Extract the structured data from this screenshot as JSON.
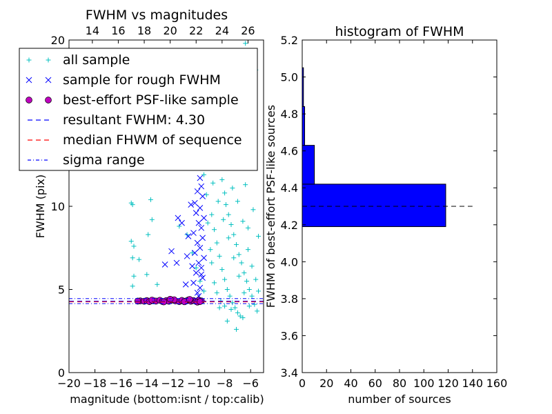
{
  "chart_data": [
    {
      "type": "scatter",
      "title": "FWHM vs magnitudes",
      "xlabel": "magnitude (bottom:isnt / top:calib)",
      "ylabel": "FWHM (pix)",
      "xlim": [
        -20,
        -5
      ],
      "ylim": [
        0,
        20
      ],
      "xticks": [
        "−20",
        "−18",
        "−16",
        "−14",
        "−12",
        "−10",
        "−8",
        "−6"
      ],
      "xtick_values": [
        -20,
        -18,
        -16,
        -14,
        -12,
        -10,
        -8,
        -6
      ],
      "yticks": [
        "0",
        "5",
        "10",
        "15",
        "20"
      ],
      "ytick_values": [
        0,
        5,
        10,
        15,
        20
      ],
      "top_axis": {
        "ticks": [
          "14",
          "16",
          "18",
          "20",
          "22",
          "24",
          "26"
        ],
        "bottom_equivalent": [
          -18.2,
          -16.2,
          -14.2,
          -12.2,
          -10.2,
          -8.2,
          -6.2
        ]
      },
      "legend": {
        "placement": "top-left",
        "entries": [
          {
            "label": "all sample",
            "marker": "plus",
            "color": "#00bfbf"
          },
          {
            "label": "sample for rough FWHM",
            "marker": "x",
            "color": "#0000ff"
          },
          {
            "label": "best-effort PSF-like sample",
            "marker": "circle",
            "color": "#bf00bf"
          },
          {
            "label": "resultant FWHM: 4.30",
            "marker": "dashed",
            "color": "#0000ff"
          },
          {
            "label": "median FHWM of sequence",
            "marker": "dashed",
            "color": "#ff0000"
          },
          {
            "label": "sigma range",
            "marker": "dashdot",
            "color": "#0000ff"
          }
        ]
      },
      "series": [
        {
          "name": "all sample",
          "color": "#00bfbf",
          "points": [
            [
              -15.2,
              10.2
            ],
            [
              -15.1,
              10.1
            ],
            [
              -15.2,
              7.9
            ],
            [
              -15.0,
              7.6
            ],
            [
              -15.1,
              6.9
            ],
            [
              -15.0,
              5.8
            ],
            [
              -15.1,
              5.2
            ],
            [
              -13.7,
              10.4
            ],
            [
              -13.6,
              9.2
            ],
            [
              -13.9,
              8.3
            ],
            [
              -14.6,
              6.8
            ],
            [
              -14.0,
              5.9
            ],
            [
              -13.2,
              5.3
            ],
            [
              -11.5,
              8.8
            ],
            [
              -10.9,
              8.3
            ],
            [
              -10.5,
              7.2
            ],
            [
              -10.2,
              6.3
            ],
            [
              -9.9,
              5.5
            ],
            [
              -9.6,
              4.9
            ],
            [
              -9.3,
              17.5
            ],
            [
              -9.1,
              16.8
            ],
            [
              -8.9,
              15.3
            ],
            [
              -8.7,
              14.2
            ],
            [
              -8.6,
              13.1
            ],
            [
              -8.4,
              12.3
            ],
            [
              -8.2,
              11.6
            ],
            [
              -8.0,
              10.8
            ],
            [
              -7.9,
              10.1
            ],
            [
              -7.7,
              9.5
            ],
            [
              -7.5,
              8.9
            ],
            [
              -7.3,
              8.3
            ],
            [
              -7.1,
              7.7
            ],
            [
              -6.9,
              7.1
            ],
            [
              -6.7,
              6.6
            ],
            [
              -6.5,
              6.0
            ],
            [
              -6.3,
              5.5
            ],
            [
              -6.1,
              5.0
            ],
            [
              -5.9,
              4.6
            ],
            [
              -5.7,
              4.1
            ],
            [
              -5.5,
              3.7
            ],
            [
              -9.0,
              9.5
            ],
            [
              -8.8,
              8.6
            ],
            [
              -8.6,
              7.8
            ],
            [
              -8.4,
              7.0
            ],
            [
              -8.2,
              6.2
            ],
            [
              -8.0,
              5.6
            ],
            [
              -7.8,
              5.0
            ],
            [
              -7.6,
              4.6
            ],
            [
              -7.4,
              4.2
            ],
            [
              -7.2,
              3.9
            ],
            [
              -7.0,
              3.6
            ],
            [
              -6.8,
              3.4
            ],
            [
              -6.6,
              3.3
            ],
            [
              -9.2,
              12.8
            ],
            [
              -8.9,
              11.4
            ],
            [
              -8.5,
              10.3
            ],
            [
              -8.1,
              9.2
            ],
            [
              -7.7,
              8.1
            ],
            [
              -7.3,
              6.9
            ],
            [
              -6.9,
              5.8
            ],
            [
              -6.5,
              4.8
            ],
            [
              -6.1,
              4.0
            ],
            [
              -8.3,
              4.3
            ],
            [
              -8.0,
              4.0
            ],
            [
              -7.5,
              3.8
            ],
            [
              -7.8,
              3.1
            ],
            [
              -7.1,
              2.6
            ],
            [
              -6.4,
              19.8
            ],
            [
              -6.0,
              18.9
            ],
            [
              -5.6,
              18.2
            ],
            [
              -7.0,
              17.7
            ],
            [
              -6.6,
              16.6
            ],
            [
              -8.3,
              16.0
            ],
            [
              -9.4,
              14.6
            ],
            [
              -9.2,
              13.8
            ],
            [
              -7.6,
              12.4
            ],
            [
              -6.4,
              11.3
            ],
            [
              -5.8,
              9.8
            ],
            [
              -5.4,
              8.2
            ],
            [
              -9.6,
              11.9
            ],
            [
              -9.4,
              10.7
            ],
            [
              -9.3,
              9.0
            ],
            [
              -9.1,
              7.4
            ],
            [
              -9.0,
              6.6
            ],
            [
              -8.8,
              5.4
            ],
            [
              -8.6,
              4.8
            ],
            [
              -8.4,
              3.9
            ],
            [
              -6.2,
              7.4
            ],
            [
              -5.9,
              6.4
            ],
            [
              -5.6,
              5.6
            ],
            [
              -5.4,
              4.9
            ],
            [
              -7.4,
              11.1
            ],
            [
              -7.0,
              10.3
            ],
            [
              -6.6,
              9.1
            ],
            [
              -6.2,
              8.7
            ],
            [
              -7.9,
              13.6
            ],
            [
              -8.6,
              15.6
            ]
          ]
        },
        {
          "name": "sample for rough FWHM",
          "color": "#0000ff",
          "points": [
            [
              -9.9,
              11.7
            ],
            [
              -9.8,
              11.2
            ],
            [
              -10.1,
              10.9
            ],
            [
              -9.7,
              10.6
            ],
            [
              -10.3,
              10.2
            ],
            [
              -9.9,
              9.9
            ],
            [
              -10.2,
              9.6
            ],
            [
              -9.6,
              9.3
            ],
            [
              -10.0,
              9.0
            ],
            [
              -9.8,
              8.7
            ],
            [
              -10.4,
              8.4
            ],
            [
              -9.7,
              8.1
            ],
            [
              -10.1,
              7.8
            ],
            [
              -9.9,
              7.5
            ],
            [
              -10.3,
              7.2
            ],
            [
              -9.6,
              6.9
            ],
            [
              -10.0,
              6.6
            ],
            [
              -9.8,
              6.3
            ],
            [
              -10.2,
              6.0
            ],
            [
              -9.7,
              5.7
            ],
            [
              -10.4,
              5.4
            ],
            [
              -9.9,
              5.1
            ],
            [
              -10.1,
              4.8
            ],
            [
              -10.6,
              10.1
            ],
            [
              -10.8,
              8.2
            ],
            [
              -10.5,
              6.4
            ],
            [
              -11.6,
              9.3
            ],
            [
              -11.3,
              9.0
            ],
            [
              -12.1,
              7.3
            ],
            [
              -11.7,
              6.6
            ],
            [
              -10.9,
              7.0
            ],
            [
              -12.6,
              6.5
            ],
            [
              -11.0,
              5.3
            ],
            [
              -9.7,
              12.5
            ],
            [
              -9.8,
              5.9
            ],
            [
              -10.0,
              4.6
            ]
          ]
        },
        {
          "name": "best-effort PSF-like sample",
          "color": "#bf00bf",
          "points": [
            [
              -14.5,
              4.31
            ],
            [
              -14.2,
              4.29
            ],
            [
              -14.0,
              4.33
            ],
            [
              -13.8,
              4.27
            ],
            [
              -13.5,
              4.32
            ],
            [
              -13.3,
              4.3
            ],
            [
              -13.0,
              4.35
            ],
            [
              -12.8,
              4.28
            ],
            [
              -12.5,
              4.33
            ],
            [
              -12.3,
              4.29
            ],
            [
              -12.0,
              4.36
            ],
            [
              -11.8,
              4.31
            ],
            [
              -11.5,
              4.27
            ],
            [
              -11.3,
              4.34
            ],
            [
              -11.0,
              4.3
            ],
            [
              -10.8,
              4.37
            ],
            [
              -10.6,
              4.29
            ],
            [
              -10.4,
              4.33
            ],
            [
              -10.2,
              4.28
            ],
            [
              -10.0,
              4.35
            ],
            [
              -9.8,
              4.31
            ],
            [
              -14.7,
              4.3
            ],
            [
              -13.6,
              4.36
            ],
            [
              -12.7,
              4.25
            ],
            [
              -11.9,
              4.38
            ],
            [
              -11.1,
              4.26
            ],
            [
              -10.7,
              4.4
            ],
            [
              -10.1,
              4.24
            ],
            [
              -9.9,
              4.27
            ],
            [
              -12.2,
              4.41
            ]
          ]
        }
      ],
      "lines": [
        {
          "name": "resultant FWHM: 4.30",
          "y": 4.3,
          "style": "dashed",
          "color": "#0000ff"
        },
        {
          "name": "median FHWM of sequence",
          "y": 4.3,
          "style": "dashed",
          "color": "#ff0000"
        },
        {
          "name": "sigma range",
          "y": 4.45,
          "style": "dashdot",
          "color": "#0000ff"
        },
        {
          "name": "sigma range",
          "y": 4.15,
          "style": "dashdot",
          "color": "#0000ff"
        }
      ]
    },
    {
      "type": "bar",
      "orientation": "horizontal",
      "title": "histogram of FWHM",
      "xlabel": "number of sources",
      "ylabel": "FWHM of best-effort PSF-like sources",
      "xlim": [
        0,
        160
      ],
      "ylim": [
        3.4,
        5.2
      ],
      "xticks": [
        "0",
        "20",
        "40",
        "60",
        "80",
        "100",
        "120",
        "140",
        "160"
      ],
      "xtick_values": [
        0,
        20,
        40,
        60,
        80,
        100,
        120,
        140,
        160
      ],
      "yticks": [
        "3.4",
        "3.6",
        "3.8",
        "4.0",
        "4.2",
        "4.4",
        "4.6",
        "4.8",
        "5.0",
        "5.2"
      ],
      "ytick_values": [
        3.4,
        3.6,
        3.8,
        4.0,
        4.2,
        4.4,
        4.6,
        4.8,
        5.0,
        5.2
      ],
      "bar_color": "#0000ff",
      "bins": [
        {
          "from": 4.19,
          "to": 4.42,
          "count": 118
        },
        {
          "from": 4.42,
          "to": 4.63,
          "count": 10
        },
        {
          "from": 4.63,
          "to": 4.84,
          "count": 2
        },
        {
          "from": 4.84,
          "to": 5.05,
          "count": 1
        }
      ],
      "reference_line": {
        "y": 4.3,
        "style": "dashed",
        "color": "#000000",
        "x_range": [
          0,
          140
        ]
      }
    }
  ]
}
